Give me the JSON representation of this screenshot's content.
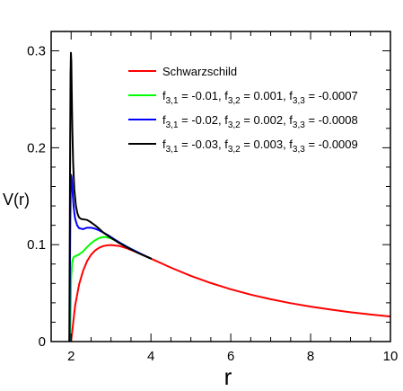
{
  "chart_data": {
    "type": "line",
    "xlabel": "r",
    "ylabel": "V(r)",
    "xlim": [
      1.5,
      10
    ],
    "ylim": [
      0,
      0.32
    ],
    "x_ticks": [
      2,
      4,
      6,
      8,
      10
    ],
    "x_tick_labels": [
      "2",
      "4",
      "6",
      "8",
      "10"
    ],
    "y_ticks": [
      0,
      0.1,
      0.2,
      0.3
    ],
    "y_tick_labels": [
      "0",
      "0.1",
      "0.2",
      "0.3"
    ],
    "grid": false,
    "legend_position": "top-right",
    "series": [
      {
        "name": "Schwarzschild",
        "color": "#ff0000",
        "legend_parts": [
          [
            "Schwarzschild",
            ""
          ]
        ],
        "x": [
          2.0,
          2.1,
          2.2,
          2.3,
          2.4,
          2.5,
          2.6,
          2.7,
          2.8,
          2.9,
          3.0,
          3.2,
          3.4,
          3.6,
          3.8,
          4.0,
          4.5,
          5.0,
          5.5,
          6.0,
          6.5,
          7.0,
          7.5,
          8.0,
          8.5,
          9.0,
          9.5,
          10.0
        ],
        "y": [
          0.0,
          0.037,
          0.059,
          0.073,
          0.083,
          0.0896,
          0.094,
          0.0968,
          0.0985,
          0.0993,
          0.0996,
          0.0987,
          0.0962,
          0.0929,
          0.0892,
          0.0856,
          0.0763,
          0.0678,
          0.0604,
          0.054,
          0.0484,
          0.0437,
          0.0396,
          0.0361,
          0.033,
          0.0303,
          0.0279,
          0.0258
        ]
      },
      {
        "name": "f3,1 = -0.01, f3,2 = 0.001, f3,3 = -0.0007",
        "color": "#00ff00",
        "legend_parts": [
          [
            "f",
            ""
          ],
          [
            "3,1",
            "sub"
          ],
          [
            " = -0.01, f",
            ""
          ],
          [
            "3,2",
            "sub"
          ],
          [
            " = 0.001, f",
            ""
          ],
          [
            "3,3",
            "sub"
          ],
          [
            " = -0.0007",
            ""
          ]
        ],
        "x": [
          1.975,
          2.0,
          2.03,
          2.06,
          2.1,
          2.15,
          2.2,
          2.3,
          2.4,
          2.5,
          2.6,
          2.7,
          2.8,
          2.9,
          3.0,
          3.2,
          3.4,
          3.6,
          3.8,
          4.0
        ],
        "y": [
          0.0,
          0.065,
          0.083,
          0.087,
          0.088,
          0.089,
          0.09,
          0.093,
          0.0975,
          0.1015,
          0.1045,
          0.1068,
          0.1078,
          0.1076,
          0.1065,
          0.1024,
          0.0978,
          0.0935,
          0.0894,
          0.0857
        ]
      },
      {
        "name": "f3,1 = -0.02, f3,2 = 0.002, f3,3 = -0.0008",
        "color": "#0000ff",
        "legend_parts": [
          [
            "f",
            ""
          ],
          [
            "3,1",
            "sub"
          ],
          [
            " = -0.02, f",
            ""
          ],
          [
            "3,2",
            "sub"
          ],
          [
            " = 0.002, f",
            ""
          ],
          [
            "3,3",
            "sub"
          ],
          [
            " = -0.0008",
            ""
          ]
        ],
        "x": [
          1.96,
          1.97,
          1.98,
          1.99,
          2.0,
          2.01,
          2.02,
          2.04,
          2.06,
          2.08,
          2.1,
          2.15,
          2.2,
          2.3,
          2.4,
          2.5,
          2.6,
          2.7,
          2.8,
          3.0,
          3.2,
          3.4,
          3.6,
          3.8,
          4.0
        ],
        "y": [
          0.0,
          0.07,
          0.125,
          0.16,
          0.172,
          0.17,
          0.165,
          0.152,
          0.141,
          0.133,
          0.127,
          0.12,
          0.117,
          0.116,
          0.1175,
          0.1175,
          0.1165,
          0.1148,
          0.1127,
          0.1078,
          0.1025,
          0.0977,
          0.0935,
          0.0895,
          0.0857
        ]
      },
      {
        "name": "f3,1 = -0.03, f3,2 = 0.003, f3,3 = -0.0009",
        "color": "#000000",
        "legend_parts": [
          [
            "f",
            ""
          ],
          [
            "3,1",
            "sub"
          ],
          [
            " = -0.03, f",
            ""
          ],
          [
            "3,2",
            "sub"
          ],
          [
            " = 0.003, f",
            ""
          ],
          [
            "3,3",
            "sub"
          ],
          [
            " = -0.0009",
            ""
          ]
        ],
        "x": [
          1.955,
          1.965,
          1.975,
          1.985,
          1.995,
          2.005,
          2.015,
          2.03,
          2.05,
          2.08,
          2.12,
          2.16,
          2.2,
          2.25,
          2.3,
          2.4,
          2.5,
          2.6,
          2.7,
          2.8,
          3.0,
          3.2,
          3.4,
          3.6,
          3.8,
          4.0
        ],
        "y": [
          0.0,
          0.1,
          0.2,
          0.275,
          0.298,
          0.29,
          0.26,
          0.22,
          0.185,
          0.157,
          0.14,
          0.132,
          0.128,
          0.1265,
          0.1262,
          0.1255,
          0.123,
          0.12,
          0.1165,
          0.1127,
          0.107,
          0.1018,
          0.0972,
          0.093,
          0.0892,
          0.0856
        ]
      }
    ]
  }
}
